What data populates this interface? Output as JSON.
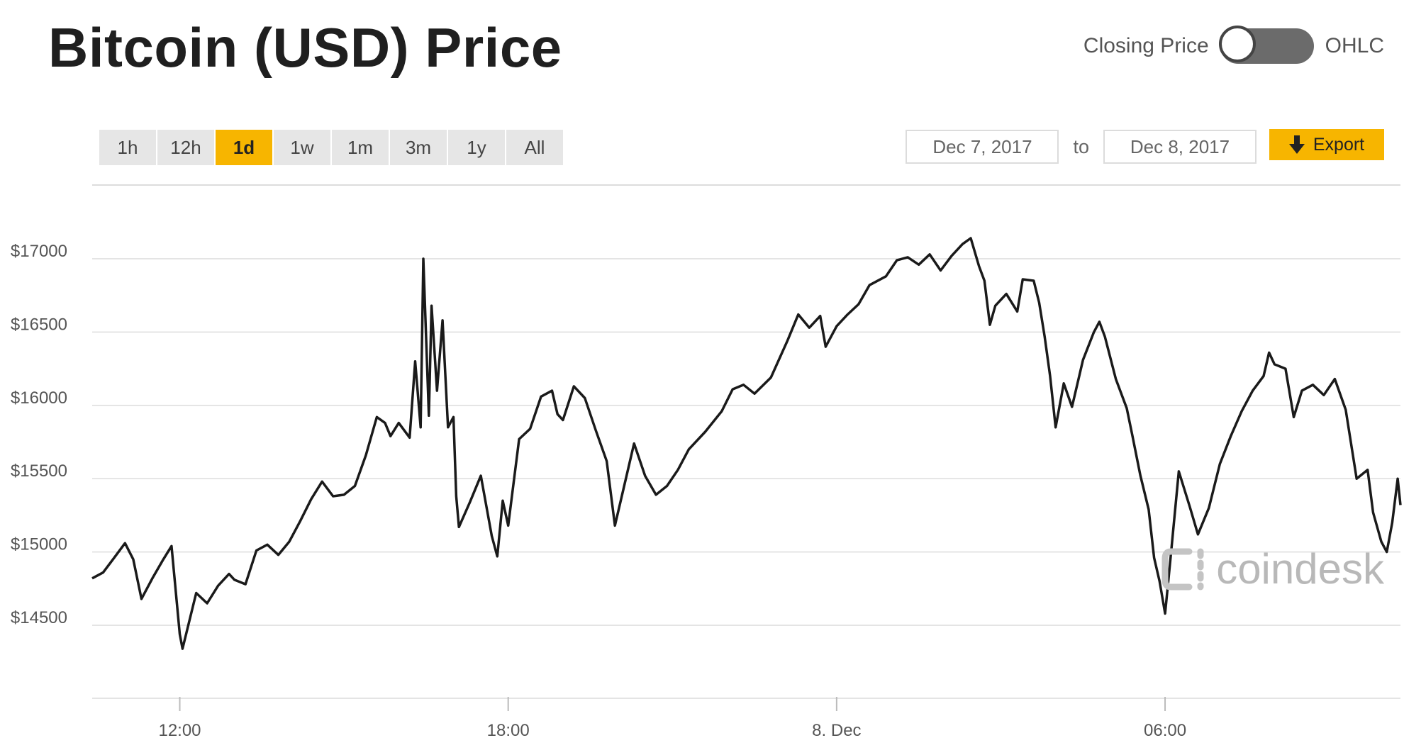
{
  "header": {
    "title": "Bitcoin (USD) Price"
  },
  "toggle": {
    "left_label": "Closing Price",
    "right_label": "OHLC"
  },
  "ranges": [
    {
      "label": "1h",
      "active": false
    },
    {
      "label": "12h",
      "active": false
    },
    {
      "label": "1d",
      "active": true
    },
    {
      "label": "1w",
      "active": false
    },
    {
      "label": "1m",
      "active": false
    },
    {
      "label": "3m",
      "active": false
    },
    {
      "label": "1y",
      "active": false
    },
    {
      "label": "All",
      "active": false
    }
  ],
  "dates": {
    "from": "Dec 7, 2017",
    "to_label": "to",
    "to": "Dec 8, 2017"
  },
  "export": {
    "label": "Export",
    "icon": "down-arrow-icon"
  },
  "watermark": {
    "text": "coindesk",
    "icon": "coindesk-logo-icon"
  },
  "colors": {
    "accent": "#f7b500",
    "line": "#1a1a1a",
    "grid": "#dcdcdc"
  },
  "chart_data": {
    "type": "line",
    "title": "",
    "xlabel": "",
    "ylabel": "",
    "y_ticks": [
      {
        "value": 14500,
        "label": "$14500"
      },
      {
        "value": 15000,
        "label": "$15000"
      },
      {
        "value": 15500,
        "label": "$15500"
      },
      {
        "value": 16000,
        "label": "$16000"
      },
      {
        "value": 16500,
        "label": "$16500"
      },
      {
        "value": 17000,
        "label": "$17000"
      }
    ],
    "x_ticks": [
      {
        "value": 12,
        "label": "12:00"
      },
      {
        "value": 18,
        "label": "18:00"
      },
      {
        "value": 24,
        "label": "8. Dec"
      },
      {
        "value": 30,
        "label": "06:00"
      }
    ],
    "xlim": [
      10.4,
      34.3
    ],
    "ylim": [
      13900,
      17520
    ],
    "grid": true,
    "legend": "none",
    "series": [
      {
        "values": [
          [
            10.4,
            14820
          ],
          [
            10.6,
            14860
          ],
          [
            10.8,
            14960
          ],
          [
            11.0,
            15060
          ],
          [
            11.15,
            14950
          ],
          [
            11.3,
            14680
          ],
          [
            11.5,
            14820
          ],
          [
            11.7,
            14950
          ],
          [
            11.85,
            15040
          ],
          [
            12.0,
            14440
          ],
          [
            12.05,
            14340
          ],
          [
            12.3,
            14720
          ],
          [
            12.5,
            14650
          ],
          [
            12.7,
            14770
          ],
          [
            12.9,
            14850
          ],
          [
            13.0,
            14810
          ],
          [
            13.2,
            14780
          ],
          [
            13.4,
            15010
          ],
          [
            13.6,
            15050
          ],
          [
            13.8,
            14980
          ],
          [
            14.0,
            15070
          ],
          [
            14.2,
            15210
          ],
          [
            14.4,
            15360
          ],
          [
            14.6,
            15480
          ],
          [
            14.8,
            15380
          ],
          [
            15.0,
            15390
          ],
          [
            15.2,
            15450
          ],
          [
            15.4,
            15660
          ],
          [
            15.6,
            15920
          ],
          [
            15.75,
            15880
          ],
          [
            15.85,
            15790
          ],
          [
            16.0,
            15880
          ],
          [
            16.2,
            15780
          ],
          [
            16.3,
            16300
          ],
          [
            16.4,
            15850
          ],
          [
            16.45,
            17000
          ],
          [
            16.55,
            15930
          ],
          [
            16.6,
            16680
          ],
          [
            16.7,
            16100
          ],
          [
            16.8,
            16580
          ],
          [
            16.9,
            15850
          ],
          [
            17.0,
            15920
          ],
          [
            17.05,
            15380
          ],
          [
            17.1,
            15170
          ],
          [
            17.3,
            15340
          ],
          [
            17.5,
            15520
          ],
          [
            17.7,
            15110
          ],
          [
            17.8,
            14970
          ],
          [
            17.9,
            15350
          ],
          [
            18.0,
            15180
          ],
          [
            18.2,
            15770
          ],
          [
            18.4,
            15840
          ],
          [
            18.6,
            16060
          ],
          [
            18.8,
            16100
          ],
          [
            18.9,
            15940
          ],
          [
            19.0,
            15900
          ],
          [
            19.2,
            16130
          ],
          [
            19.4,
            16050
          ],
          [
            19.6,
            15830
          ],
          [
            19.8,
            15620
          ],
          [
            19.95,
            15180
          ],
          [
            20.1,
            15420
          ],
          [
            20.3,
            15740
          ],
          [
            20.5,
            15520
          ],
          [
            20.7,
            15390
          ],
          [
            20.9,
            15450
          ],
          [
            21.1,
            15560
          ],
          [
            21.3,
            15700
          ],
          [
            21.6,
            15820
          ],
          [
            21.9,
            15960
          ],
          [
            22.1,
            16110
          ],
          [
            22.3,
            16140
          ],
          [
            22.5,
            16080
          ],
          [
            22.8,
            16190
          ],
          [
            23.1,
            16440
          ],
          [
            23.3,
            16620
          ],
          [
            23.5,
            16530
          ],
          [
            23.7,
            16610
          ],
          [
            23.8,
            16400
          ],
          [
            24.0,
            16540
          ],
          [
            24.2,
            16620
          ],
          [
            24.4,
            16690
          ],
          [
            24.6,
            16820
          ],
          [
            24.9,
            16880
          ],
          [
            25.1,
            16990
          ],
          [
            25.3,
            17010
          ],
          [
            25.5,
            16960
          ],
          [
            25.7,
            17030
          ],
          [
            25.9,
            16920
          ],
          [
            26.1,
            17020
          ],
          [
            26.3,
            17100
          ],
          [
            26.45,
            17140
          ],
          [
            26.6,
            16950
          ],
          [
            26.7,
            16850
          ],
          [
            26.8,
            16550
          ],
          [
            26.9,
            16680
          ],
          [
            27.1,
            16760
          ],
          [
            27.3,
            16640
          ],
          [
            27.4,
            16860
          ],
          [
            27.6,
            16850
          ],
          [
            27.7,
            16700
          ],
          [
            27.8,
            16470
          ],
          [
            27.9,
            16200
          ],
          [
            28.0,
            15850
          ],
          [
            28.15,
            16150
          ],
          [
            28.3,
            15990
          ],
          [
            28.5,
            16310
          ],
          [
            28.7,
            16500
          ],
          [
            28.8,
            16570
          ],
          [
            28.9,
            16470
          ],
          [
            29.1,
            16180
          ],
          [
            29.3,
            15980
          ],
          [
            29.4,
            15800
          ],
          [
            29.55,
            15520
          ],
          [
            29.7,
            15290
          ],
          [
            29.8,
            14960
          ],
          [
            29.9,
            14800
          ],
          [
            30.0,
            14580
          ],
          [
            30.1,
            14960
          ],
          [
            30.25,
            15550
          ],
          [
            30.45,
            15310
          ],
          [
            30.6,
            15120
          ],
          [
            30.8,
            15300
          ],
          [
            31.0,
            15600
          ],
          [
            31.2,
            15790
          ],
          [
            31.4,
            15960
          ],
          [
            31.6,
            16100
          ],
          [
            31.8,
            16200
          ],
          [
            31.9,
            16360
          ],
          [
            32.0,
            16280
          ],
          [
            32.2,
            16250
          ],
          [
            32.35,
            15920
          ],
          [
            32.5,
            16100
          ],
          [
            32.7,
            16140
          ],
          [
            32.9,
            16070
          ],
          [
            33.1,
            16180
          ],
          [
            33.3,
            15970
          ],
          [
            33.5,
            15500
          ],
          [
            33.7,
            15560
          ],
          [
            33.8,
            15270
          ],
          [
            33.95,
            15070
          ],
          [
            34.05,
            15000
          ],
          [
            34.15,
            15200
          ],
          [
            34.25,
            15500
          ],
          [
            34.3,
            15320
          ]
        ]
      }
    ]
  }
}
